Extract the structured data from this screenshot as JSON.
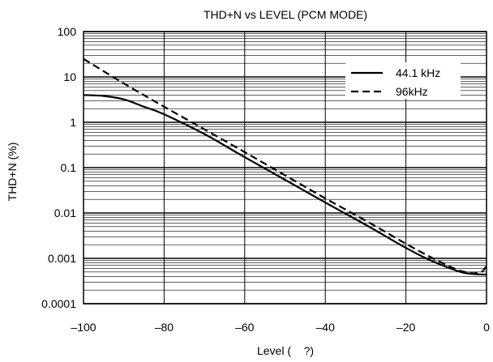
{
  "chart_data": {
    "type": "line",
    "title": "THD+N vs LEVEL (PCM MODE)",
    "xlabel": "Level (    ?)",
    "ylabel": "THD+N (%)",
    "xlim": [
      -100,
      0
    ],
    "ylim": [
      0.0001,
      100
    ],
    "yscale": "log",
    "grid": true,
    "legend_position": "top-right",
    "x_ticks": [
      -100,
      -80,
      -60,
      -40,
      -20,
      0
    ],
    "x_tick_labels": [
      "–100",
      "–80",
      "–60",
      "–40",
      "–20",
      "0"
    ],
    "y_ticks": [
      0.0001,
      0.001,
      0.01,
      0.1,
      1,
      10,
      100
    ],
    "y_tick_labels": [
      "0.0001",
      "0.001",
      "0.01",
      "0.1",
      "1",
      "10",
      "100"
    ],
    "series": [
      {
        "name": "44.1 kHz",
        "style": "solid",
        "x": [
          -100,
          -95,
          -90,
          -85,
          -80,
          -70,
          -60,
          -50,
          -40,
          -30,
          -20,
          -15,
          -10,
          -7,
          -5,
          -3,
          -1,
          0
        ],
        "y": [
          4.0,
          3.8,
          3.2,
          2.2,
          1.5,
          0.55,
          0.17,
          0.054,
          0.017,
          0.0055,
          0.0017,
          0.001,
          0.00065,
          0.00052,
          0.00047,
          0.00045,
          0.00044,
          0.00044
        ]
      },
      {
        "name": "96kHz",
        "style": "dashed",
        "x": [
          -100,
          -90,
          -80,
          -70,
          -60,
          -50,
          -40,
          -30,
          -20,
          -15,
          -10,
          -7,
          -5,
          -3,
          -1,
          0
        ],
        "y": [
          25,
          7.2,
          2.2,
          0.7,
          0.22,
          0.068,
          0.021,
          0.0068,
          0.0021,
          0.0012,
          0.00072,
          0.00055,
          0.00049,
          0.00047,
          0.00052,
          0.0007
        ]
      }
    ]
  }
}
